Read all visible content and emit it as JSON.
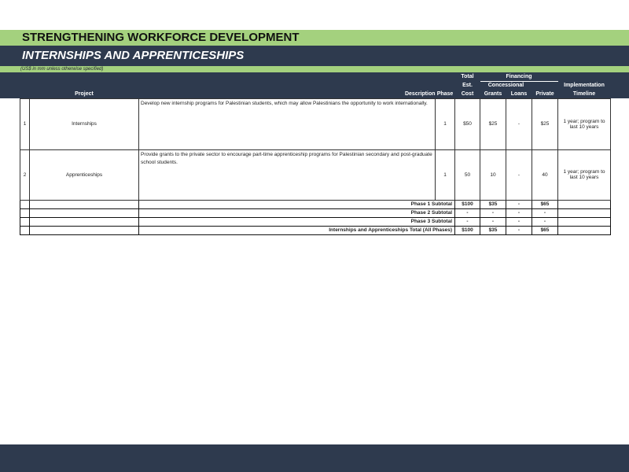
{
  "title": "STRENGTHENING WORKFORCE DEVELOPMENT",
  "subtitle": "INTERNSHIPS AND APPRENTICESHIPS",
  "note": "(US$ in mm unless otherwise specified)",
  "headers": {
    "project": "Project",
    "description": "Description",
    "phase": "Phase",
    "total1": "Total",
    "total2": "Est.",
    "total3": "Cost",
    "financing": "Financing",
    "concessional": "Concessional",
    "grants": "Grants",
    "loans": "Loans",
    "private": "Private",
    "timeline1": "Implementation",
    "timeline2": "Timeline"
  },
  "rows": [
    {
      "num": "1",
      "project": "Internships",
      "description": "Develop new internship programs for Palestinian students, which may allow Palestinians the opportunity to work internationally.",
      "phase": "1",
      "cost": "$50",
      "grants": "$25",
      "loans": "-",
      "private": "$25",
      "timeline": "1 year; program to last 10 years"
    },
    {
      "num": "2",
      "project": "Apprenticeships",
      "description": "Provide grants to the private sector to encourage part-time apprenticeship programs for Palestinian secondary and post-graduate school students.",
      "phase": "1",
      "cost": "50",
      "grants": "10",
      "loans": "-",
      "private": "40",
      "timeline": "1 year; program to last 10 years"
    }
  ],
  "subtotals": [
    {
      "label": "Phase 1 Subtotal",
      "cost": "$100",
      "grants": "$35",
      "loans": "-",
      "private": "$65"
    },
    {
      "label": "Phase 2 Subtotal",
      "cost": "-",
      "grants": "-",
      "loans": "-",
      "private": "-"
    },
    {
      "label": "Phase 3 Subtotal",
      "cost": "-",
      "grants": "-",
      "loans": "-",
      "private": "-"
    },
    {
      "label": "Internships and Apprenticeships Total (All Phases)",
      "cost": "$100",
      "grants": "$35",
      "loans": "-",
      "private": "$65"
    }
  ],
  "colors": {
    "green": "#a4d17e",
    "navy": "#2e3a4e"
  }
}
